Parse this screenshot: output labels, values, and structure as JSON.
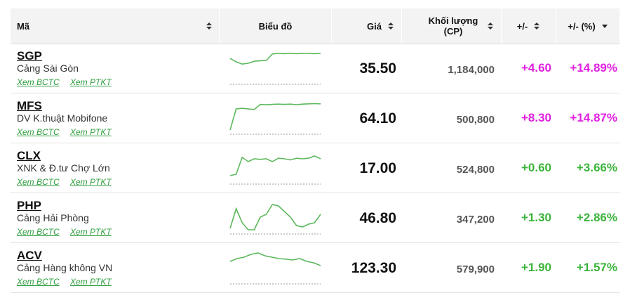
{
  "table": {
    "columns": [
      "Mã",
      "Biểu đồ",
      "Giá",
      "Khối lượng (CP)",
      "+/-",
      "+/- (%)"
    ],
    "row_links": [
      "Xem BCTC",
      "Xem PTKT"
    ],
    "sparkline_color": "#5cb85c",
    "rows": [
      {
        "code": "SGP",
        "name": "Cảng Sài Gòn",
        "price": "35.50",
        "volume": "1,184,000",
        "change": "+4.60",
        "pct": "+14.89%",
        "color": "#e020e0",
        "sparkline": [
          82,
          70,
          62,
          65,
          72,
          74,
          75,
          98,
          100,
          99,
          100,
          99,
          100,
          100,
          99,
          100
        ]
      },
      {
        "code": "MFS",
        "name": "DV K.thuật Mobifone",
        "price": "64.10",
        "volume": "500,800",
        "change": "+8.30",
        "pct": "+14.87%",
        "color": "#e020e0",
        "sparkline": [
          5,
          80,
          82,
          80,
          78,
          96,
          95,
          96,
          97,
          96,
          97,
          95,
          97,
          98,
          99,
          98
        ]
      },
      {
        "code": "CLX",
        "name": "XNK & Đ.tư Chợ Lớn",
        "price": "17.00",
        "volume": "524,800",
        "change": "+0.60",
        "pct": "+3.66%",
        "color": "#3cb43c",
        "sparkline": [
          20,
          25,
          85,
          70,
          80,
          78,
          80,
          70,
          82,
          80,
          76,
          82,
          80,
          82,
          90,
          80
        ]
      },
      {
        "code": "PHP",
        "name": "Cảng Hải Phòng",
        "price": "46.80",
        "volume": "347,200",
        "change": "+1.30",
        "pct": "+2.86%",
        "color": "#3cb43c",
        "sparkline": [
          10,
          80,
          30,
          5,
          5,
          50,
          60,
          95,
          90,
          70,
          50,
          20,
          15,
          25,
          30,
          60
        ]
      },
      {
        "code": "ACV",
        "name": "Cảng Hàng không VN",
        "price": "123.30",
        "volume": "579,900",
        "change": "+1.90",
        "pct": "+1.57%",
        "color": "#3cb43c",
        "sparkline": [
          70,
          80,
          85,
          95,
          100,
          90,
          85,
          80,
          78,
          75,
          80,
          70,
          65,
          55
        ]
      }
    ]
  }
}
